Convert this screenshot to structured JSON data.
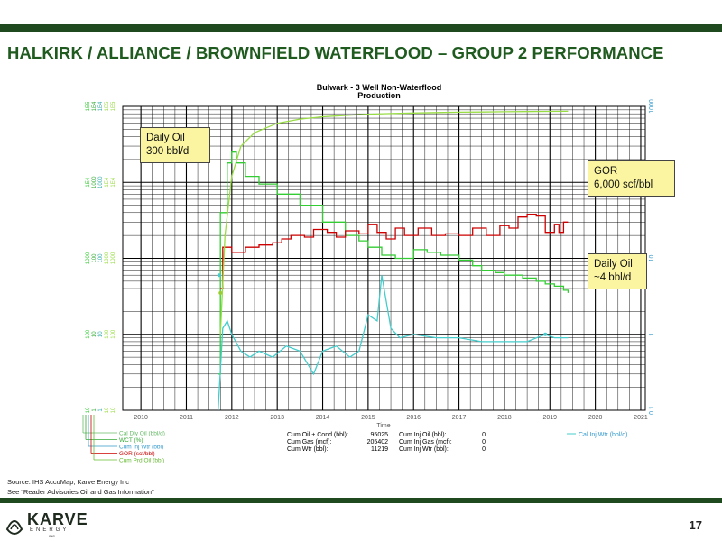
{
  "slide": {
    "title": "HALKIRK / ALLIANCE / BROWNFIELD WATERFLOOD – GROUP 2 PERFORMANCE",
    "source_line1": "Source: IHS AccuMap; Karve Energy Inc",
    "source_line2": "See “Reader Advisories Oil and Gas Information”",
    "page_number": "17",
    "logo_text": "KARVE",
    "logo_sub": "ENERGY",
    "logo_inc": "INC"
  },
  "colors": {
    "bar": "#1f4a1f",
    "title": "#1f5a1f",
    "oil": "#33cc33",
    "cum_oil": "#99dd44",
    "gor": "#cc0000",
    "wtr": "#44cccc",
    "callout_bg": "#fbf5a1"
  },
  "callouts": {
    "oil_start_l1": "Daily Oil",
    "oil_start_l2": "300 bbl/d",
    "gor_l1": "GOR",
    "gor_l2": "6,000 scf/bbl",
    "oil_end_l1": "Daily Oil",
    "oil_end_l2": "~4 bbl/d"
  },
  "chart_data": {
    "type": "line",
    "title": "Bulwark - 3 Well Non-Waterflood",
    "subtitle": "Production",
    "xlabel": "Time",
    "x_ticks": [
      "2010",
      "2011",
      "2012",
      "2013",
      "2014",
      "2015",
      "2016",
      "2017",
      "2018",
      "2019",
      "2020",
      "2021"
    ],
    "xlim": [
      2009.6,
      2021.1
    ],
    "y_scale": "log",
    "ylim": [
      0.1,
      1000
    ],
    "y_ticks_right": [
      "0.1",
      "1",
      "10",
      "100",
      "1000"
    ],
    "y_axis_labels_left": [
      [
        "10",
        "100",
        "1000",
        "1E4",
        "1E5"
      ],
      [
        "1",
        "10",
        "100",
        "1000",
        "1E4"
      ],
      [
        "1",
        "10",
        "100",
        "1000",
        "1E4"
      ],
      [
        "10",
        "100",
        "1000",
        "1E4",
        "1E5"
      ],
      [
        "10",
        "100",
        "1000",
        "1E4",
        "1E5"
      ]
    ],
    "legend_left": [
      "Cal Dly Oil (bbl/d)",
      "WCT (%)",
      "Cum Inj Wtr (bbl)",
      "GOR (scf/bbl)",
      "Cum Prd Oil (bbl)"
    ],
    "legend_right": "Cal Inj Wtr (bbl/d)",
    "stats": {
      "cum_oil_cond_label": "Cum Oil + Cond (bbl):",
      "cum_oil_cond": "95025",
      "cum_gas_label": "Cum Gas (mcf):",
      "cum_gas": "205402",
      "cum_wtr_label": "Cum Wtr (bbl):",
      "cum_wtr": "11219",
      "cum_inj_oil_label": "Cum Inj Oil (bbl):",
      "cum_inj_oil": "0",
      "cum_inj_gas_label": "Cum Inj Gas (mcf):",
      "cum_inj_gas": "0",
      "cum_inj_wtr_label": "Cum Inj Wtr (bbl):",
      "cum_inj_wtr": "0"
    },
    "series": [
      {
        "name": "Cal Dly Oil (bbl/d)",
        "color": "#33cc33",
        "step": true,
        "points": [
          [
            2011.7,
            0.3
          ],
          [
            2011.75,
            40
          ],
          [
            2011.9,
            180
          ],
          [
            2012.0,
            250
          ],
          [
            2012.1,
            180
          ],
          [
            2012.3,
            120
          ],
          [
            2012.6,
            95
          ],
          [
            2013.0,
            70
          ],
          [
            2013.5,
            50
          ],
          [
            2014.0,
            30
          ],
          [
            2014.5,
            20
          ],
          [
            2014.8,
            17
          ],
          [
            2015.0,
            14
          ],
          [
            2015.3,
            11
          ],
          [
            2015.6,
            10
          ],
          [
            2016.0,
            13
          ],
          [
            2016.3,
            12
          ],
          [
            2016.6,
            11
          ],
          [
            2017.0,
            9.5
          ],
          [
            2017.3,
            8
          ],
          [
            2017.5,
            7
          ],
          [
            2017.8,
            6.5
          ],
          [
            2018.0,
            6
          ],
          [
            2018.4,
            5.5
          ],
          [
            2018.7,
            5
          ],
          [
            2018.9,
            4.6
          ],
          [
            2019.1,
            4.3
          ],
          [
            2019.3,
            3.8
          ],
          [
            2019.4,
            3.5
          ]
        ]
      },
      {
        "name": "GOR (scf/bbl)",
        "color": "#cc0000",
        "step": true,
        "points": [
          [
            2011.75,
            4
          ],
          [
            2011.8,
            14
          ],
          [
            2012.0,
            12
          ],
          [
            2012.3,
            14
          ],
          [
            2012.6,
            15
          ],
          [
            2012.9,
            16
          ],
          [
            2013.1,
            18
          ],
          [
            2013.3,
            20
          ],
          [
            2013.6,
            19
          ],
          [
            2013.8,
            24
          ],
          [
            2014.1,
            22
          ],
          [
            2014.3,
            19
          ],
          [
            2014.5,
            23
          ],
          [
            2014.8,
            21
          ],
          [
            2015.0,
            28
          ],
          [
            2015.2,
            22
          ],
          [
            2015.4,
            18
          ],
          [
            2015.6,
            25
          ],
          [
            2015.8,
            20
          ],
          [
            2016.1,
            25
          ],
          [
            2016.4,
            20
          ],
          [
            2016.7,
            21
          ],
          [
            2017.0,
            20
          ],
          [
            2017.3,
            25
          ],
          [
            2017.6,
            20
          ],
          [
            2017.9,
            27
          ],
          [
            2018.1,
            25
          ],
          [
            2018.3,
            35
          ],
          [
            2018.5,
            38
          ],
          [
            2018.7,
            36
          ],
          [
            2018.9,
            22
          ],
          [
            2019.1,
            28
          ],
          [
            2019.2,
            22
          ],
          [
            2019.3,
            30
          ],
          [
            2019.4,
            30
          ]
        ]
      },
      {
        "name": "Cal Inj Wtr (bbl/d)",
        "color": "#44cccc",
        "step": false,
        "points": [
          [
            2011.7,
            0.1
          ],
          [
            2011.8,
            1.2
          ],
          [
            2011.9,
            1.5
          ],
          [
            2012.0,
            1.0
          ],
          [
            2012.2,
            0.6
          ],
          [
            2012.4,
            0.5
          ],
          [
            2012.6,
            0.6
          ],
          [
            2012.9,
            0.5
          ],
          [
            2013.2,
            0.7
          ],
          [
            2013.5,
            0.6
          ],
          [
            2013.8,
            0.3
          ],
          [
            2014.0,
            0.6
          ],
          [
            2014.3,
            0.7
          ],
          [
            2014.6,
            0.5
          ],
          [
            2014.8,
            0.6
          ],
          [
            2015.0,
            1.8
          ],
          [
            2015.2,
            1.5
          ],
          [
            2015.3,
            6
          ],
          [
            2015.5,
            1.2
          ],
          [
            2015.7,
            0.9
          ],
          [
            2016.0,
            1.0
          ],
          [
            2016.5,
            0.9
          ],
          [
            2017.0,
            0.9
          ],
          [
            2017.5,
            0.8
          ],
          [
            2018.0,
            0.8
          ],
          [
            2018.5,
            0.8
          ],
          [
            2018.9,
            1.0
          ],
          [
            2019.1,
            0.9
          ],
          [
            2019.4,
            0.9
          ]
        ]
      },
      {
        "name": "Cum Prd Oil (bbl)",
        "color": "#99dd44",
        "step": false,
        "points": [
          [
            2011.75,
            1
          ],
          [
            2011.85,
            20
          ],
          [
            2012.0,
            120
          ],
          [
            2012.2,
            300
          ],
          [
            2012.5,
            450
          ],
          [
            2013.0,
            600
          ],
          [
            2013.5,
            680
          ],
          [
            2014.0,
            730
          ],
          [
            2014.5,
            760
          ],
          [
            2015.0,
            790
          ],
          [
            2015.5,
            805
          ],
          [
            2016.0,
            820
          ],
          [
            2016.5,
            830
          ],
          [
            2017.0,
            840
          ],
          [
            2017.5,
            845
          ],
          [
            2018.0,
            850
          ],
          [
            2018.5,
            855
          ],
          [
            2019.0,
            860
          ],
          [
            2019.4,
            862
          ]
        ]
      }
    ]
  }
}
